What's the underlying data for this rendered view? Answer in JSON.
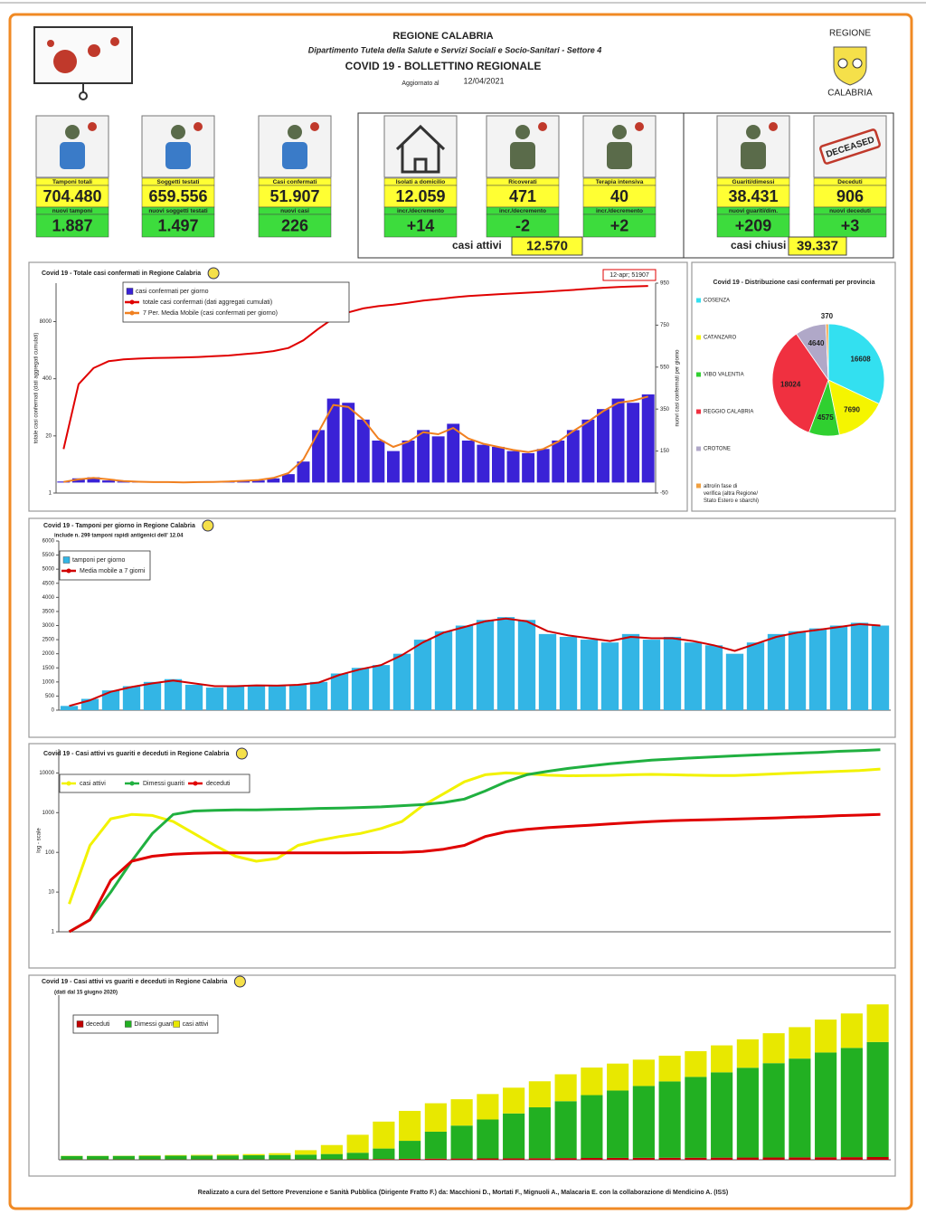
{
  "header": {
    "region": "REGIONE CALABRIA",
    "department": "Dipartimento Tutela della Salute e Servizi Sociali e Socio-Sanitari - Settore 4",
    "title": "COVID 19 - BOLLETTINO REGIONALE",
    "updated_label": "Aggiornato al",
    "updated_date": "12/04/2021",
    "logo_top": "REGIONE",
    "logo_bottom": "CALABRIA"
  },
  "kpis": [
    {
      "label": "Tamponi totali",
      "value": "704.480",
      "sub_label": "nuovi tamponi",
      "delta": "1.887"
    },
    {
      "label": "Soggetti testati",
      "value": "659.556",
      "sub_label": "nuovi soggetti testati",
      "delta": "1.497"
    },
    {
      "label": "Casi confermati",
      "value": "51.907",
      "sub_label": "nuovi casi",
      "delta": "226"
    },
    {
      "label": "Isolati a domicilio",
      "value": "12.059",
      "sub_label": "incr./decremento",
      "delta": "+14"
    },
    {
      "label": "Ricoverati",
      "value": "471",
      "sub_label": "incr./decremento",
      "delta": "-2"
    },
    {
      "label": "Terapia intensiva",
      "value": "40",
      "sub_label": "incr./decremento",
      "delta": "+2"
    },
    {
      "label": "Guariti/dimessi",
      "value": "38.431",
      "sub_label": "nuovi guariti/dim.",
      "delta": "+209"
    },
    {
      "label": "Deceduti",
      "value": "906",
      "sub_label": "nuovi deceduti",
      "delta": "+3"
    }
  ],
  "stamp": "DECEASED",
  "summary": [
    {
      "label": "casi attivi",
      "value": "12.570"
    },
    {
      "label": "casi chiusi",
      "value": "39.337"
    }
  ],
  "chart_data": [
    {
      "type": "bar",
      "title": "Covid 19 - Totale casi confermati in Regione Calabria",
      "annotation": "12-apr; 51907",
      "y_label": "totale casi confermati (dati aggregati cumulati)",
      "y2_label": "nuovi casi confermati per giorno",
      "log_scale": true,
      "ylim": [
        1,
        60000
      ],
      "yticks": [
        1,
        20,
        400,
        8000
      ],
      "y2lim": [
        -50,
        950
      ],
      "y2ticks": [
        -50,
        150,
        350,
        550,
        750,
        950
      ],
      "series": [
        {
          "name": "casi confermati per giorno",
          "type": "bar",
          "axis": "y2",
          "color": "#3a22d6",
          "values": [
            5,
            20,
            25,
            10,
            5,
            3,
            2,
            2,
            1,
            2,
            3,
            5,
            8,
            10,
            20,
            40,
            100,
            250,
            400,
            380,
            300,
            200,
            150,
            200,
            250,
            220,
            280,
            200,
            180,
            170,
            150,
            140,
            160,
            200,
            250,
            300,
            350,
            400,
            380,
            420
          ]
        },
        {
          "name": "totale casi confermati (dati aggregati cumulati)",
          "type": "line",
          "color": "#e00000",
          "values": [
            10,
            300,
            700,
            1000,
            1100,
            1150,
            1180,
            1200,
            1220,
            1250,
            1300,
            1350,
            1450,
            1550,
            1700,
            2000,
            3000,
            5500,
            9500,
            13000,
            16000,
            18000,
            19500,
            21500,
            24000,
            26000,
            28500,
            30500,
            32000,
            33500,
            35000,
            36500,
            38000,
            40000,
            42000,
            44500,
            47000,
            49000,
            50500,
            51907
          ]
        },
        {
          "name": "7 Per. Media Mobile (casi confermati per giorno)",
          "type": "line",
          "axis": "y2",
          "color": "#f08020",
          "values": [
            3,
            15,
            22,
            15,
            7,
            4,
            2,
            2,
            1,
            2,
            3,
            5,
            8,
            12,
            22,
            45,
            110,
            240,
            370,
            360,
            300,
            210,
            170,
            195,
            240,
            230,
            260,
            210,
            185,
            170,
            155,
            145,
            160,
            195,
            245,
            290,
            340,
            380,
            390,
            410
          ]
        }
      ]
    },
    {
      "type": "bar",
      "title": "Covid 19 - Tamponi per giorno in Regione Calabria",
      "subtitle": "include n. 299 tamponi rapidi antigenici dell' 12.04",
      "ylim": [
        0,
        6000
      ],
      "yticks": [
        0,
        500,
        1000,
        1500,
        2000,
        2500,
        3000,
        3500,
        4000,
        4500,
        5000,
        5500,
        6000
      ],
      "series": [
        {
          "name": "tamponi per giorno",
          "type": "bar",
          "color": "#33b5e5",
          "values": [
            150,
            400,
            700,
            850,
            1000,
            1100,
            900,
            800,
            850,
            900,
            850,
            900,
            1000,
            1300,
            1500,
            1600,
            2000,
            2500,
            2800,
            3000,
            3200,
            3300,
            3200,
            2700,
            2600,
            2500,
            2400,
            2700,
            2500,
            2600,
            2400,
            2300,
            2000,
            2400,
            2700,
            2800,
            2900,
            3000,
            3100,
            3000
          ]
        },
        {
          "name": "Media mobile a 7 giorni",
          "type": "line",
          "color": "#d00000",
          "values": [
            150,
            350,
            650,
            820,
            950,
            1050,
            950,
            850,
            850,
            880,
            870,
            900,
            980,
            1250,
            1450,
            1600,
            1950,
            2400,
            2750,
            2950,
            3150,
            3250,
            3150,
            2800,
            2650,
            2550,
            2450,
            2600,
            2550,
            2550,
            2450,
            2300,
            2100,
            2350,
            2600,
            2750,
            2850,
            2950,
            3050,
            3000
          ]
        }
      ]
    },
    {
      "type": "line",
      "title": "Covid 19 - Casi attivi vs guariti e deceduti in Regione Calabria",
      "y_label": "log - scale",
      "log_scale": true,
      "ylim": [
        1,
        40000
      ],
      "yticks": [
        1,
        10,
        100,
        1000,
        10000
      ],
      "series": [
        {
          "name": "casi attivi",
          "color": "#f2f200",
          "values": [
            5,
            150,
            700,
            900,
            850,
            600,
            300,
            150,
            80,
            60,
            70,
            150,
            200,
            250,
            300,
            400,
            600,
            1500,
            3000,
            6000,
            9000,
            10000,
            9500,
            8800,
            8500,
            8600,
            8700,
            9000,
            9200,
            9000,
            8800,
            8600,
            8600,
            9000,
            9500,
            10000,
            10500,
            11000,
            11500,
            12570
          ]
        },
        {
          "name": "Dimessi guariti",
          "color": "#20b040",
          "values": [
            1,
            2,
            10,
            60,
            300,
            900,
            1100,
            1150,
            1170,
            1180,
            1200,
            1230,
            1280,
            1300,
            1350,
            1400,
            1500,
            1600,
            1800,
            2200,
            3500,
            6000,
            9000,
            11000,
            13000,
            15000,
            17000,
            19000,
            21000,
            22500,
            24000,
            25500,
            27000,
            28500,
            30000,
            31500,
            33000,
            35000,
            36500,
            38431
          ]
        },
        {
          "name": "deceduti",
          "color": "#e00000",
          "values": [
            1,
            2,
            20,
            60,
            80,
            90,
            95,
            97,
            97,
            97,
            97,
            97,
            97,
            97,
            98,
            99,
            100,
            105,
            120,
            150,
            250,
            330,
            380,
            420,
            450,
            480,
            520,
            560,
            600,
            630,
            650,
            670,
            690,
            710,
            740,
            770,
            800,
            840,
            870,
            906
          ]
        }
      ]
    },
    {
      "type": "bar",
      "stacked": true,
      "title": "Covid 19 - Casi attivi vs guariti e deceduti in Regione Calabria",
      "subtitle": "(dati dal 15 giugno 2020)",
      "ylim": [
        0,
        55000
      ],
      "series": [
        {
          "name": "deceduti",
          "color": "#c00000",
          "values": [
            97,
            97,
            97,
            97,
            97,
            97,
            98,
            99,
            100,
            105,
            120,
            150,
            250,
            330,
            380,
            420,
            450,
            480,
            520,
            560,
            600,
            630,
            650,
            670,
            690,
            710,
            740,
            770,
            800,
            840,
            870,
            906
          ]
        },
        {
          "name": "Dimessi guariti",
          "color": "#22b022",
          "values": [
            1170,
            1180,
            1200,
            1230,
            1280,
            1300,
            1350,
            1400,
            1500,
            1600,
            1800,
            2200,
            3500,
            6000,
            9000,
            11000,
            13000,
            15000,
            17000,
            19000,
            21000,
            22500,
            24000,
            25500,
            27000,
            28500,
            30000,
            31500,
            33000,
            35000,
            36500,
            38431
          ]
        },
        {
          "name": "casi attivi",
          "color": "#e8e800",
          "values": [
            80,
            60,
            70,
            150,
            200,
            250,
            300,
            400,
            600,
            1500,
            3000,
            6000,
            9000,
            10000,
            9500,
            8800,
            8500,
            8600,
            8700,
            9000,
            9200,
            9000,
            8800,
            8600,
            8600,
            9000,
            9500,
            10000,
            10500,
            11000,
            11500,
            12570
          ]
        }
      ]
    },
    {
      "type": "pie",
      "title": "Covid 19 - Distribuzione casi confermati per provincia",
      "categories": [
        "COSENZA",
        "CATANZARO",
        "VIBO VALENTIA",
        "REGGIO CALABRIA",
        "CROTONE",
        "altro/in fase di verifica (altra Regione/ Stato Estero e sbarchi)"
      ],
      "values": [
        16608,
        7690,
        4575,
        18024,
        4640,
        370
      ],
      "colors": [
        "#33e0f0",
        "#f5f500",
        "#30d030",
        "#f03040",
        "#b0a8c8",
        "#f0a040"
      ]
    }
  ],
  "footer": "Realizzato a cura del Settore Prevenzione e Sanità Pubblica (Dirigente Fratto F.) da: Macchioni D., Mortati F., Mignuoli A., Malacaria E. con la collaborazione di Mendicino A. (ISS)"
}
